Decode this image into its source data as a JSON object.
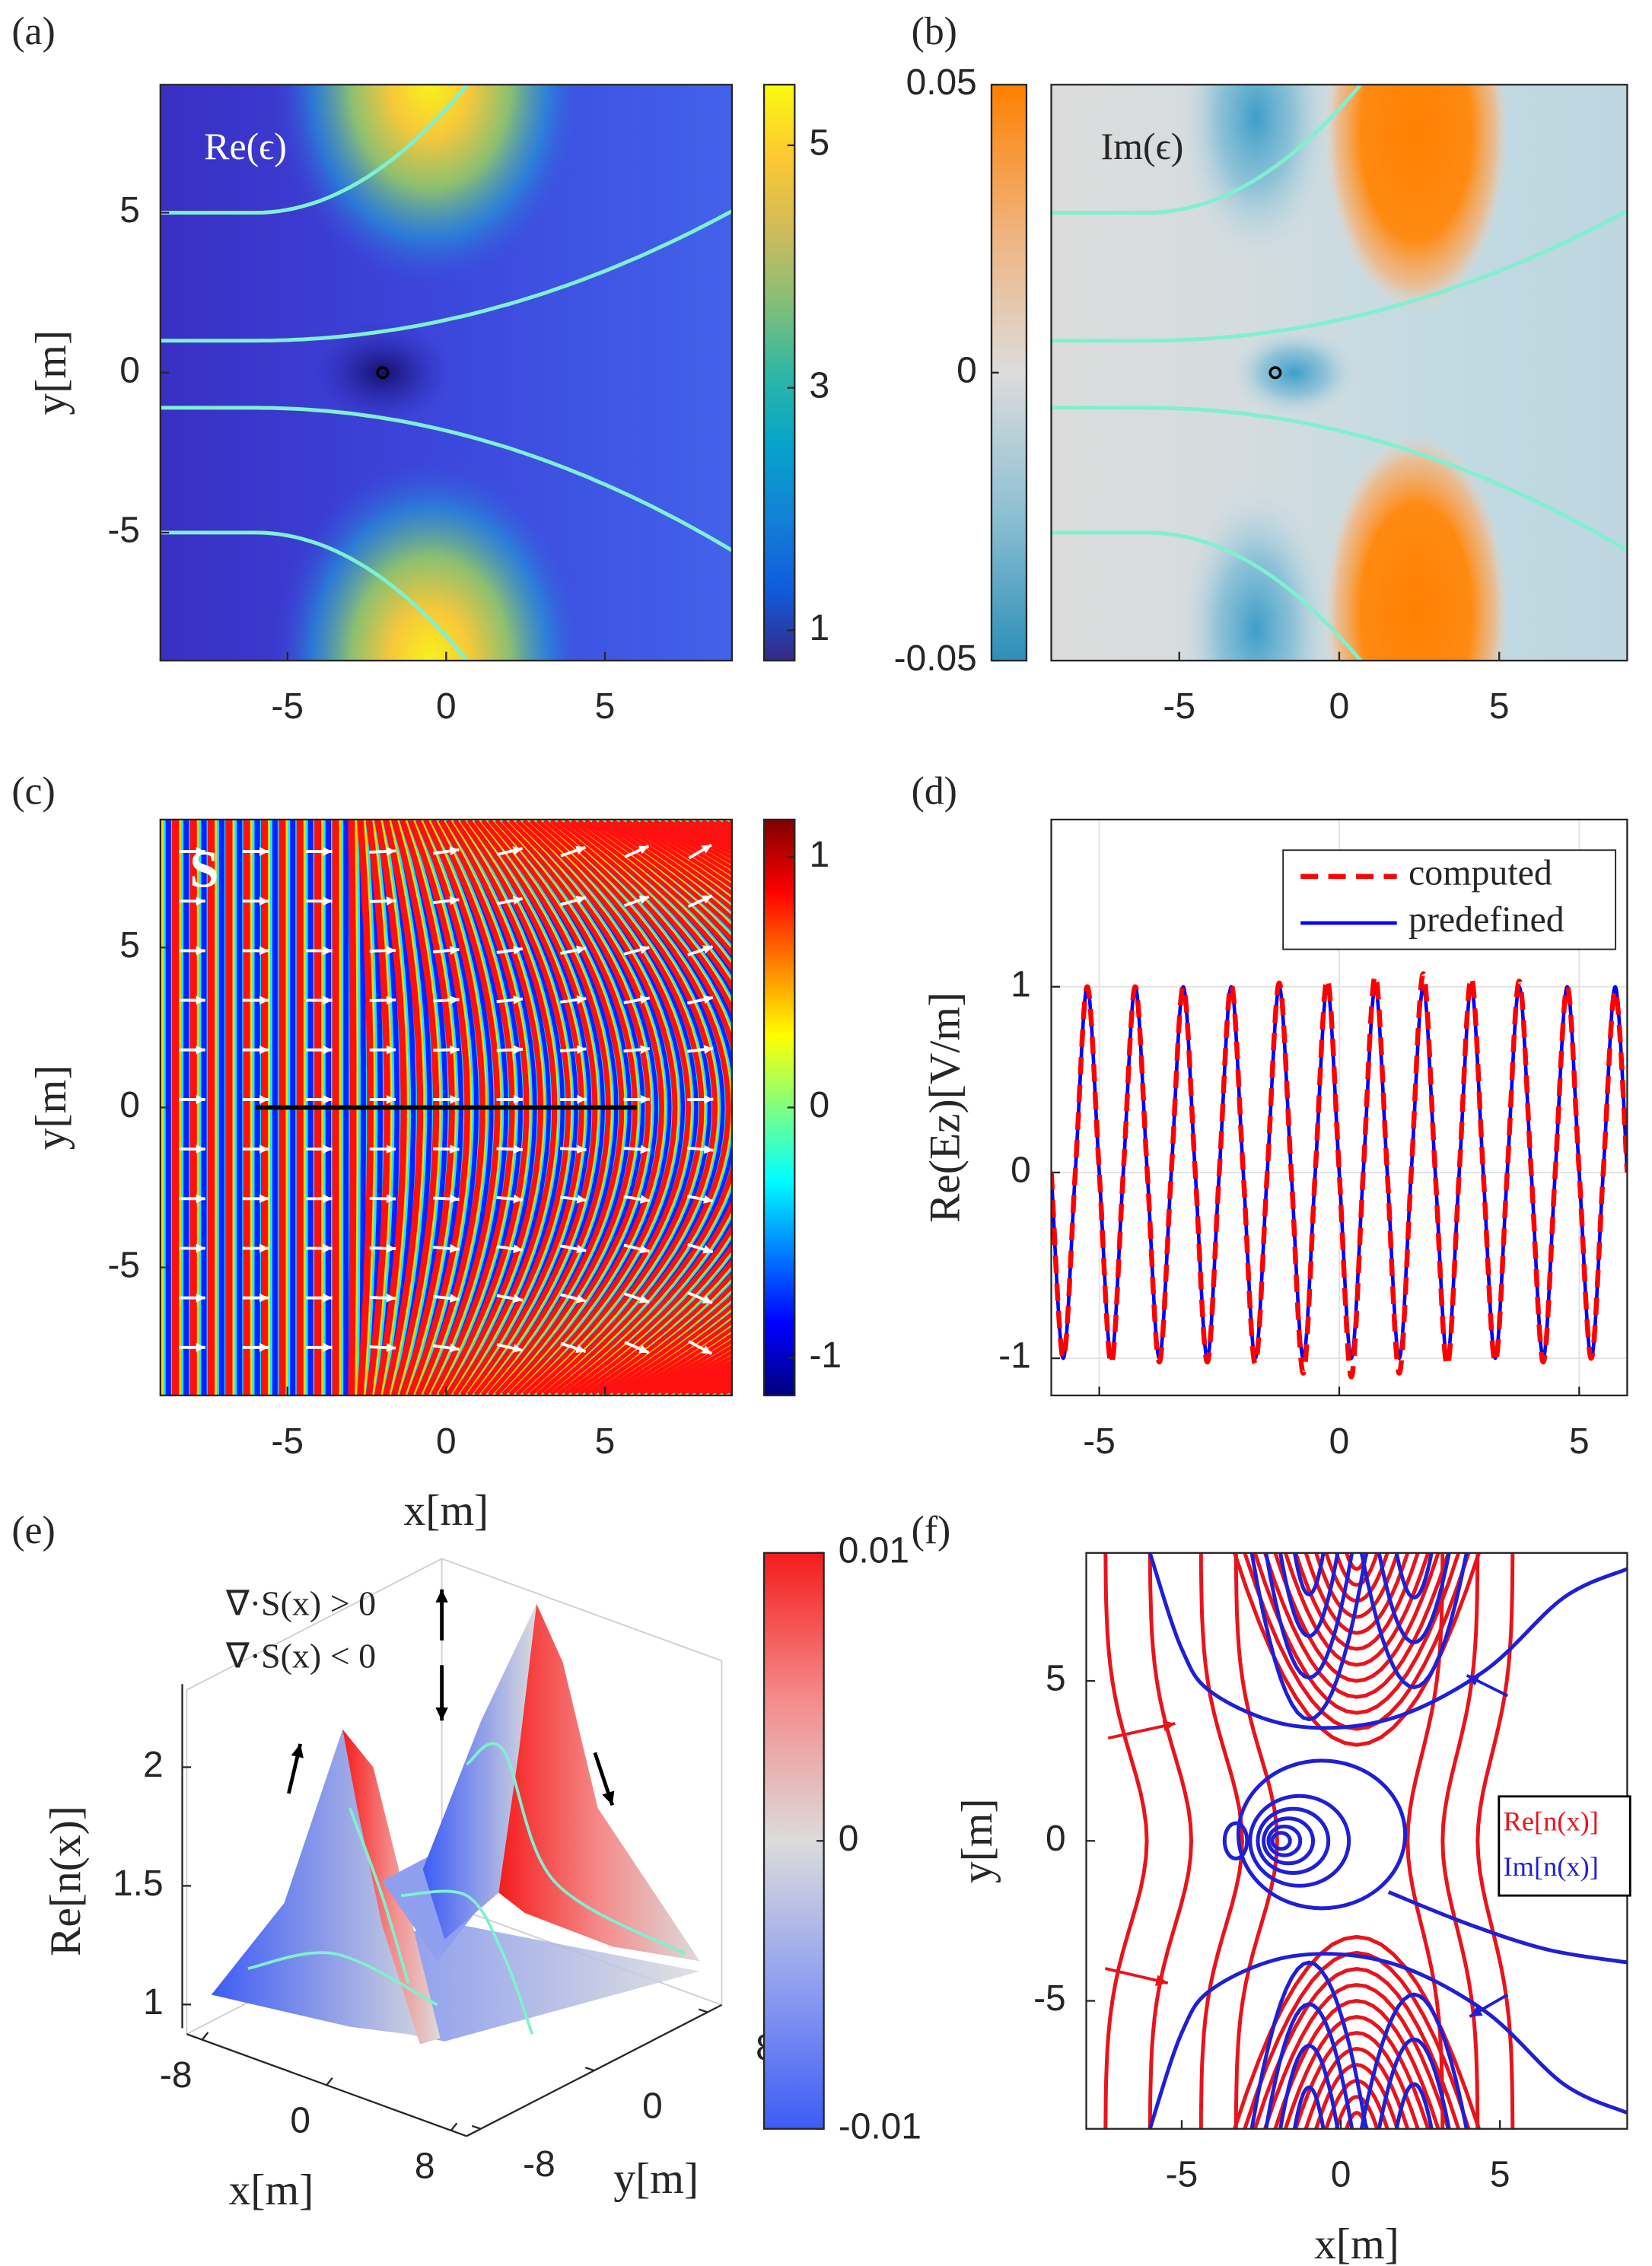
{
  "chart_data": [
    {
      "type": "heatmap",
      "label": "(a)",
      "annotation": "Re(ϵ)",
      "xlim": [
        -9,
        9
      ],
      "ylim": [
        -9,
        9
      ],
      "xticks": [
        -5,
        0,
        5
      ],
      "yticks": [
        -5,
        0,
        5
      ],
      "ylabel": "y[m]",
      "colormap": [
        "#352a87",
        "#0f5cdd",
        "#1481d6",
        "#06a4ca",
        "#2eb7a4",
        "#87bf77",
        "#d1bb59",
        "#fec832",
        "#f9fb0e"
      ],
      "clim": [
        0.75,
        5.5
      ],
      "cticks": [
        1,
        3,
        5
      ]
    },
    {
      "type": "heatmap",
      "label": "(b)",
      "annotation": "Im(ϵ)",
      "xlim": [
        -9,
        9
      ],
      "ylim": [
        -9,
        9
      ],
      "xticks": [
        -5,
        0,
        5
      ],
      "colormap": [
        "#2b8fb8",
        "#8cbfd3",
        "#dcdcdc",
        "#f0b27a",
        "#ff8000"
      ],
      "clim": [
        -0.05,
        0.05
      ],
      "cticks": [
        -0.05,
        0,
        0.05
      ]
    },
    {
      "type": "heatmap",
      "label": "(c)",
      "annotation": "S",
      "xlim": [
        -9,
        9
      ],
      "ylim": [
        -9,
        9
      ],
      "xticks": [
        -5,
        0,
        5
      ],
      "yticks": [
        -5,
        0,
        5
      ],
      "xlabel": "x[m]",
      "ylabel": "y[m]",
      "colormap": [
        "#00007f",
        "#0000ff",
        "#0080ff",
        "#00ffff",
        "#80ff80",
        "#ffff00",
        "#ff8000",
        "#ff0000",
        "#7f0000"
      ],
      "clim": [
        -1.15,
        1.15
      ],
      "cticks": [
        -1,
        0,
        1
      ]
    },
    {
      "type": "line",
      "label": "(d)",
      "ylabel": "Re(Ez)[V/m]",
      "xlim": [
        -6,
        6
      ],
      "ylim": [
        -1.2,
        1.9
      ],
      "xticks": [
        -5,
        0,
        5
      ],
      "yticks": [
        -1,
        0,
        1
      ],
      "grid": true,
      "legend": "upper right",
      "x": [
        -6,
        -5.75,
        -5.5,
        -5.25,
        -5,
        -4.75,
        -4.5,
        -4.25,
        -4,
        -3.75,
        -3.5,
        -3.25,
        -3,
        -2.75,
        -2.5,
        -2.25,
        -2,
        -1.75,
        -1.5,
        -1.25,
        -1,
        -0.75,
        -0.5,
        -0.25,
        0,
        0.25,
        0.5,
        0.75,
        1,
        1.25,
        1.5,
        1.75,
        2,
        2.25,
        2.5,
        2.75,
        3,
        3.25,
        3.5,
        3.75,
        4,
        4.25,
        4.5,
        4.75,
        5,
        5.25,
        5.5,
        5.75,
        6
      ],
      "series": [
        {
          "name": "computed",
          "color": "#ff0000",
          "dash": true,
          "values": [
            0,
            -1,
            0,
            1,
            0,
            -1.03,
            0,
            1,
            0,
            -1.02,
            0,
            1,
            0,
            -1.02,
            0,
            1.01,
            0,
            -1.03,
            0,
            1.02,
            0,
            -1.08,
            0,
            1.04,
            0,
            -1.1,
            0,
            1.06,
            0,
            -1.08,
            0,
            1.07,
            0,
            -1.04,
            0,
            1.05,
            0,
            -1.02,
            0,
            1.03,
            0,
            -1.02,
            0,
            1.0,
            0,
            -1,
            0,
            0.98,
            0
          ]
        },
        {
          "name": "predefined",
          "color": "#0000ff",
          "dash": false,
          "values": [
            0,
            -1,
            0,
            1,
            0,
            -1,
            0,
            1,
            0,
            -1,
            0,
            1,
            0,
            -1,
            0,
            1,
            0,
            -1,
            0,
            1,
            0,
            -1,
            0,
            1,
            0,
            -1,
            0,
            1,
            0,
            -1,
            0,
            1,
            0,
            -1,
            0,
            1,
            0,
            -1,
            0,
            1,
            0,
            -1,
            0,
            1,
            0,
            -1,
            0,
            1,
            0
          ]
        }
      ]
    },
    {
      "type": "surface",
      "label": "(e)",
      "zlabel": "Re[n(x)]",
      "xlabel": "x[m]",
      "ylabel": "y[m]",
      "zlim": [
        0.9,
        2.35
      ],
      "zticks": [
        1,
        1.5,
        2
      ],
      "xticks": [
        -8,
        0,
        8
      ],
      "yticks": [
        -8,
        0,
        8
      ],
      "annotations": [
        "∇·S(x) > 0",
        "∇·S(x) < 0"
      ],
      "colormap": [
        "#3d5cf5",
        "#8f9ff0",
        "#dcdcdc",
        "#f58a8a",
        "#f51c1c"
      ],
      "clim": [
        -0.01,
        0.01
      ],
      "cticks": [
        -0.01,
        0,
        0.01
      ]
    },
    {
      "type": "contour",
      "label": "(f)",
      "xlabel": "x[m]",
      "ylabel": "y[m]",
      "xlim": [
        -8,
        9
      ],
      "ylim": [
        -9,
        9
      ],
      "xticks": [
        -5,
        0,
        5
      ],
      "yticks": [
        -5,
        0,
        5
      ],
      "legend": [
        {
          "name": "Re[n(x)]",
          "color": "#e8141b"
        },
        {
          "name": "Im[n(x)]",
          "color": "#1f1fd6"
        }
      ]
    }
  ]
}
